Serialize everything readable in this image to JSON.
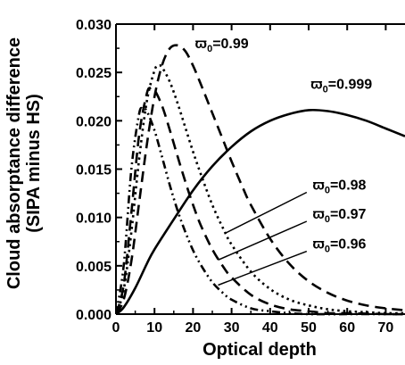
{
  "chart_data": {
    "type": "line",
    "xlabel": "Optical depth",
    "ylabel_line1": "Cloud absorptance difference",
    "ylabel_line2": "(SIPA minus HS)",
    "xlim": [
      0,
      75
    ],
    "ylim": [
      0,
      0.03
    ],
    "x_ticks": [
      "0",
      "10",
      "20",
      "30",
      "40",
      "50",
      "60",
      "70"
    ],
    "y_ticks": [
      "0.000",
      "0.005",
      "0.010",
      "0.015",
      "0.020",
      "0.025",
      "0.030"
    ],
    "grid": false,
    "series": [
      {
        "name": "ϖ0=0.999",
        "style": "solid",
        "x": [
          0,
          2,
          5,
          8,
          10,
          15,
          20,
          25,
          30,
          35,
          40,
          45,
          50,
          55,
          60,
          65,
          70,
          75
        ],
        "y": [
          0,
          0.0007,
          0.0027,
          0.0052,
          0.0067,
          0.0098,
          0.0128,
          0.0153,
          0.0173,
          0.0189,
          0.02,
          0.0207,
          0.0211,
          0.021,
          0.0206,
          0.02,
          0.0192,
          0.0184
        ]
      },
      {
        "name": "ϖ0=0.99",
        "style": "dashed",
        "x": [
          0,
          2,
          4,
          6,
          8,
          10,
          12,
          14,
          16,
          18,
          20,
          22,
          25,
          28,
          30,
          33,
          35,
          40,
          45,
          50,
          55,
          60,
          65,
          70,
          75
        ],
        "y": [
          0,
          0.0015,
          0.0055,
          0.0115,
          0.0175,
          0.0225,
          0.0258,
          0.0275,
          0.0278,
          0.0272,
          0.0257,
          0.0238,
          0.0208,
          0.0178,
          0.0158,
          0.013,
          0.0113,
          0.0078,
          0.0052,
          0.0034,
          0.0022,
          0.0014,
          0.0009,
          0.0006,
          0.0004
        ]
      },
      {
        "name": "ϖ0=0.98",
        "style": "dotted",
        "x": [
          0,
          2,
          4,
          6,
          8,
          10,
          11,
          12,
          14,
          16,
          18,
          20,
          22,
          25,
          28,
          30,
          35,
          40,
          45,
          50,
          55,
          60,
          65,
          70,
          75
        ],
        "y": [
          0,
          0.0025,
          0.0085,
          0.016,
          0.022,
          0.0252,
          0.0257,
          0.0255,
          0.024,
          0.0218,
          0.0193,
          0.0168,
          0.0145,
          0.0113,
          0.0087,
          0.0072,
          0.0044,
          0.0026,
          0.0015,
          0.0009,
          0.0005,
          0.0003,
          0.0002,
          0.0001,
          0.0001
        ]
      },
      {
        "name": "ϖ0=0.97",
        "style": "dashed",
        "x": [
          0,
          2,
          4,
          6,
          8,
          9,
          10,
          12,
          14,
          16,
          18,
          20,
          22,
          25,
          28,
          30,
          35,
          40,
          45,
          50,
          55,
          60,
          70,
          75
        ],
        "y": [
          0,
          0.003,
          0.0105,
          0.0185,
          0.0228,
          0.0234,
          0.0232,
          0.0215,
          0.019,
          0.0163,
          0.0137,
          0.0113,
          0.0092,
          0.0067,
          0.0048,
          0.0038,
          0.002,
          0.001,
          0.0005,
          0.0003,
          0.0001,
          0.0001,
          0.0,
          0.0
        ]
      },
      {
        "name": "ϖ0=0.96",
        "style": "dash-dot-dot",
        "x": [
          0,
          2,
          4,
          6,
          7,
          8,
          10,
          12,
          14,
          16,
          18,
          20,
          22,
          25,
          28,
          30,
          35,
          40,
          45,
          50,
          60,
          70,
          75
        ],
        "y": [
          0,
          0.005,
          0.015,
          0.0207,
          0.0212,
          0.021,
          0.019,
          0.0162,
          0.0133,
          0.0107,
          0.0085,
          0.0066,
          0.0051,
          0.0033,
          0.0021,
          0.0015,
          0.0006,
          0.0003,
          0.0001,
          0.0,
          0.0,
          0.0,
          0.0
        ]
      }
    ],
    "annotations": [
      {
        "label_base": "ϖ",
        "label_sub": "0",
        "label_tail": "=0.99",
        "series": 1,
        "text_x": 20.5,
        "text_y": 0.0275
      },
      {
        "label_base": "ϖ",
        "label_sub": "0",
        "label_tail": "=0.999",
        "series": 0,
        "text_x": 50.5,
        "text_y": 0.0233
      },
      {
        "label_base": "ϖ",
        "label_sub": "0",
        "label_tail": "=0.98",
        "series": 2,
        "text_x": 51,
        "text_y": 0.0129,
        "line": [
          [
            28.5,
            0.0084
          ],
          [
            49.5,
            0.0126
          ]
        ]
      },
      {
        "label_base": "ϖ",
        "label_sub": "0",
        "label_tail": "=0.97",
        "series": 3,
        "text_x": 51,
        "text_y": 0.0099,
        "line": [
          [
            26.5,
            0.0056
          ],
          [
            49.5,
            0.0096
          ]
        ]
      },
      {
        "label_base": "ϖ",
        "label_sub": "0",
        "label_tail": "=0.96",
        "series": 4,
        "text_x": 51,
        "text_y": 0.0068,
        "line": [
          [
            26.5,
            0.003
          ],
          [
            49.5,
            0.0065
          ]
        ]
      }
    ]
  }
}
